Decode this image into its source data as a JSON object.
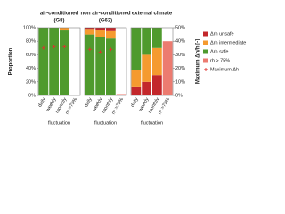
{
  "chart_data": [
    {
      "type": "bar",
      "title": "air-conditioned",
      "subtitle": "(G8)",
      "xlabel": "fluctuation",
      "ylabel": "Proportion",
      "categories": [
        "daily",
        "weekly",
        "monthly",
        "rh >75%"
      ],
      "series": [
        {
          "name": "Δrh safe",
          "color": "#4f9a2d",
          "values": [
            100,
            100,
            96,
            null
          ]
        },
        {
          "name": "Δrh intermediate",
          "color": "#f59a2f",
          "values": [
            0,
            0,
            4,
            null
          ]
        },
        {
          "name": "Δrh unsafe",
          "color": "#c3272b",
          "values": [
            0,
            0,
            0,
            null
          ]
        },
        {
          "name": "rh > 75%",
          "color": "#ec7b70",
          "values": [
            null,
            null,
            null,
            0
          ]
        },
        {
          "name": "Maximum Δh",
          "color": "#e0302e",
          "type": "scatter",
          "axis": "y2",
          "values": [
            35,
            36,
            36,
            null
          ]
        }
      ],
      "ylim": [
        0,
        100
      ],
      "yticks": [
        {
          "value": 0,
          "label": "0%"
        },
        {
          "value": 20,
          "label": "20%"
        },
        {
          "value": 40,
          "label": "40%"
        },
        {
          "value": 60,
          "label": "60%"
        },
        {
          "value": 80,
          "label": "80%"
        },
        {
          "value": 100,
          "label": "100%"
        }
      ],
      "y2lim": [
        0,
        50
      ]
    },
    {
      "type": "bar",
      "title": "non air-conditioned",
      "subtitle": "(G62)",
      "xlabel": "fluctuation",
      "categories": [
        "daily",
        "weekly",
        "monthly",
        "rh >75%"
      ],
      "series": [
        {
          "name": "Δrh safe",
          "color": "#4f9a2d",
          "values": [
            90,
            86,
            84,
            null
          ]
        },
        {
          "name": "Δrh intermediate",
          "color": "#f59a2f",
          "values": [
            7,
            10,
            11,
            null
          ]
        },
        {
          "name": "Δrh unsafe",
          "color": "#c3272b",
          "values": [
            3,
            4,
            5,
            null
          ]
        },
        {
          "name": "rh > 75%",
          "color": "#ec7b70",
          "values": [
            null,
            null,
            null,
            2
          ]
        },
        {
          "name": "Maximum Δh",
          "color": "#e0302e",
          "type": "scatter",
          "axis": "y2",
          "values": [
            34,
            32,
            34,
            null
          ]
        }
      ],
      "ylim": [
        0,
        100
      ],
      "y2lim": [
        0,
        50
      ]
    },
    {
      "type": "bar",
      "title": "external climate",
      "xlabel": "fluctuation",
      "y2label": "Maximum Δh/h [-]",
      "categories": [
        "daily",
        "weekly",
        "monthly",
        "rh >75%"
      ],
      "series": [
        {
          "name": "Δrh unsafe",
          "color": "#c3272b",
          "values": [
            12,
            20,
            30,
            null
          ]
        },
        {
          "name": "Δrh intermediate",
          "color": "#f59a2f",
          "values": [
            25,
            40,
            40,
            null
          ]
        },
        {
          "name": "Δrh safe",
          "color": "#4f9a2d",
          "values": [
            63,
            40,
            30,
            null
          ]
        },
        {
          "name": "rh > 75%",
          "color": "#ec7b70",
          "values": [
            null,
            null,
            null,
            80
          ]
        },
        {
          "name": "Maximum Δh",
          "color": "#e0302e",
          "type": "scatter",
          "axis": "y2",
          "values": [
            null,
            null,
            null,
            null
          ]
        }
      ],
      "ylim": [
        0,
        100
      ],
      "y2lim": [
        0,
        50
      ],
      "y2ticks": [
        {
          "value": 0,
          "label": "0%"
        },
        {
          "value": 10,
          "label": "10%"
        },
        {
          "value": 20,
          "label": "20%"
        },
        {
          "value": 30,
          "label": "30%"
        },
        {
          "value": 40,
          "label": "40%"
        },
        {
          "value": 50,
          "label": "50%"
        }
      ]
    }
  ]
}
